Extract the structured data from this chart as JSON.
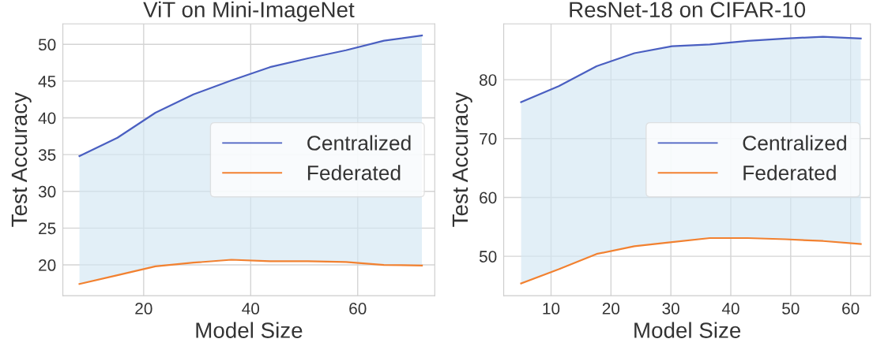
{
  "chart_data": [
    {
      "type": "line",
      "title": "ViT on Mini-ImageNet",
      "xlabel": "Model Size",
      "ylabel": "Test Accuracy",
      "x": [
        8,
        15.1,
        22.2,
        29.3,
        36.4,
        43.6,
        50.7,
        57.8,
        64.9,
        72
      ],
      "series": [
        {
          "name": "Centralized",
          "color": "#4a5fc1",
          "values": [
            34.8,
            37.3,
            40.7,
            43.2,
            45.1,
            46.9,
            48.1,
            49.2,
            50.5,
            51.2
          ],
          "lower": [
            17.4,
            18.6,
            19.8,
            20.3,
            20.7,
            20.5,
            20.5,
            20.4,
            20.0,
            19.9
          ],
          "upper": [
            34.8,
            37.3,
            40.7,
            43.2,
            45.1,
            46.9,
            48.1,
            49.2,
            50.5,
            51.2
          ]
        },
        {
          "name": "Federated",
          "color": "#f28130",
          "values": [
            17.4,
            18.6,
            19.8,
            20.3,
            20.7,
            20.5,
            20.5,
            20.4,
            20.0,
            19.9
          ]
        }
      ],
      "xlim": [
        4.9,
        74.4
      ],
      "xticks": [
        20,
        40,
        60
      ],
      "ylim": [
        15.8,
        52.8
      ],
      "yticks": [
        20,
        25,
        30,
        35,
        40,
        45,
        50
      ],
      "grid": true,
      "legend": "right",
      "line_style": "solid",
      "marker": "none"
    },
    {
      "type": "line",
      "title": "ResNet-18 on CIFAR-10",
      "xlabel": "Model Size",
      "ylabel": "Test Accuracy",
      "x": [
        5,
        11.3,
        17.6,
        23.9,
        30.2,
        36.5,
        42.8,
        49.1,
        55.4,
        61.7
      ],
      "series": [
        {
          "name": "Centralized",
          "color": "#4a5fc1",
          "values": [
            76.2,
            78.9,
            82.3,
            84.5,
            85.7,
            86.0,
            86.6,
            87.0,
            87.3,
            87.0
          ],
          "lower": [
            45.4,
            47.8,
            50.4,
            51.7,
            52.4,
            53.1,
            53.1,
            52.9,
            52.6,
            52.1
          ],
          "upper": [
            76.2,
            78.9,
            82.3,
            84.5,
            85.7,
            86.0,
            86.6,
            87.0,
            87.3,
            87.0
          ]
        },
        {
          "name": "Federated",
          "color": "#f28130",
          "values": [
            45.4,
            47.8,
            50.4,
            51.7,
            52.4,
            53.1,
            53.1,
            52.9,
            52.6,
            52.1
          ]
        }
      ],
      "xlim": [
        2.1,
        63.3
      ],
      "xticks": [
        10,
        20,
        30,
        40,
        50,
        60
      ],
      "ylim": [
        43.3,
        89.5
      ],
      "yticks": [
        50,
        60,
        70,
        80
      ],
      "grid": true,
      "legend": "right",
      "line_style": "solid",
      "marker": "none"
    }
  ]
}
